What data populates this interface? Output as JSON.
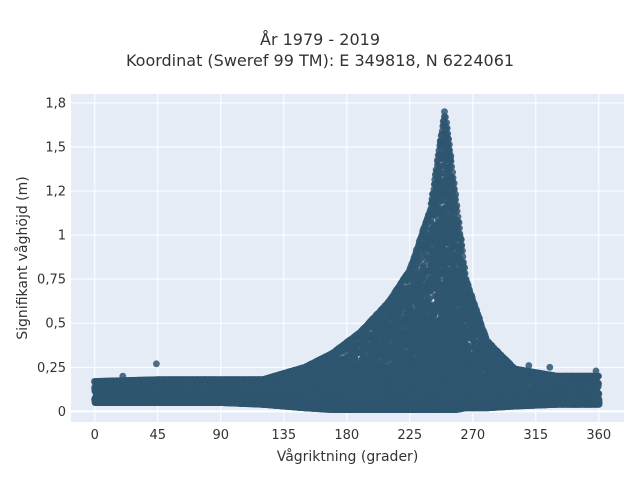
{
  "chart_data": {
    "type": "scatter",
    "title": "År 1979 - 2019",
    "subtitle": "Koordinat (Sweref 99 TM): E 349818, N 6224061",
    "xlabel": "Vågriktning (grader)",
    "ylabel": "Signifikant våghöjd (m)",
    "xlim": [
      -17,
      378
    ],
    "ylim": [
      -0.06,
      1.8
    ],
    "xticks": [
      0,
      45,
      90,
      135,
      180,
      225,
      270,
      315,
      360
    ],
    "yticks": [
      0,
      0.25,
      0.5,
      0.75,
      1,
      1.25,
      1.5,
      1.75
    ],
    "xtick_labels": [
      "0",
      "45",
      "90",
      "135",
      "180",
      "225",
      "270",
      "315",
      "360"
    ],
    "ytick_labels": [
      "0",
      "0,25",
      "0,5",
      "0,75",
      "1",
      "1,2",
      "1,5",
      "1,8"
    ],
    "grid": true,
    "marker_color": "#2f5670",
    "background_color": "#e5ecf6",
    "envelope": [
      {
        "x": 0,
        "y_max": 0.17,
        "y_min": 0.05
      },
      {
        "x": 45,
        "y_max": 0.18,
        "y_min": 0.05
      },
      {
        "x": 90,
        "y_max": 0.18,
        "y_min": 0.05
      },
      {
        "x": 120,
        "y_max": 0.18,
        "y_min": 0.04
      },
      {
        "x": 150,
        "y_max": 0.25,
        "y_min": 0.02
      },
      {
        "x": 170,
        "y_max": 0.33,
        "y_min": 0.01
      },
      {
        "x": 190,
        "y_max": 0.45,
        "y_min": 0.01
      },
      {
        "x": 210,
        "y_max": 0.62,
        "y_min": 0.01
      },
      {
        "x": 225,
        "y_max": 0.8,
        "y_min": 0.01
      },
      {
        "x": 240,
        "y_max": 1.15,
        "y_min": 0.01
      },
      {
        "x": 250,
        "y_max": 1.7,
        "y_min": 0.01
      },
      {
        "x": 258,
        "y_max": 1.2,
        "y_min": 0.01
      },
      {
        "x": 265,
        "y_max": 0.75,
        "y_min": 0.02
      },
      {
        "x": 280,
        "y_max": 0.4,
        "y_min": 0.02
      },
      {
        "x": 300,
        "y_max": 0.24,
        "y_min": 0.03
      },
      {
        "x": 330,
        "y_max": 0.2,
        "y_min": 0.04
      },
      {
        "x": 360,
        "y_max": 0.2,
        "y_min": 0.04
      }
    ],
    "outliers": [
      {
        "x": 44,
        "y": 0.27
      },
      {
        "x": 20,
        "y": 0.2
      },
      {
        "x": 310,
        "y": 0.26
      },
      {
        "x": 325,
        "y": 0.25
      },
      {
        "x": 358,
        "y": 0.23
      }
    ]
  }
}
